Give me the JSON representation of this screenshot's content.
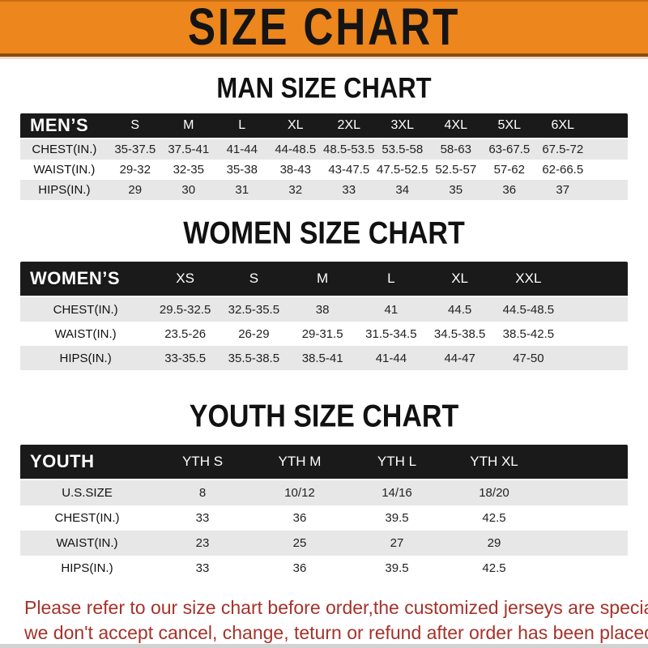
{
  "banner": {
    "title": "SIZE CHART"
  },
  "colors": {
    "banner_orange": "#ED861C",
    "band_black": "#1A1A1A",
    "row_gray": "#E7E7E7",
    "footer_red": "#A5322A"
  },
  "men": {
    "title": "MAN SIZE CHART",
    "corner": "MEN’S",
    "sizes": [
      "S",
      "M",
      "L",
      "XL",
      "2XL",
      "3XL",
      "4XL",
      "5XL",
      "6XL"
    ],
    "rows": [
      {
        "label": "CHEST(IN.)",
        "cells": [
          "35-37.5",
          "37.5-41",
          "41-44",
          "44-48.5",
          "48.5-53.5",
          "53.5-58",
          "58-63",
          "63-67.5",
          "67.5-72"
        ]
      },
      {
        "label": "WAIST(IN.)",
        "cells": [
          "29-32",
          "32-35",
          "35-38",
          "38-43",
          "43-47.5",
          "47.5-52.5",
          "52.5-57",
          "57-62",
          "62-66.5"
        ]
      },
      {
        "label": "HIPS(IN.)",
        "cells": [
          "29",
          "30",
          "31",
          "32",
          "33",
          "34",
          "35",
          "36",
          "37"
        ]
      }
    ]
  },
  "women": {
    "title": "WOMEN SIZE CHART",
    "corner": "WOMEN’S",
    "sizes": [
      "XS",
      "S",
      "M",
      "L",
      "XL",
      "XXL"
    ],
    "rows": [
      {
        "label": "CHEST(IN.)",
        "cells": [
          "29.5-32.5",
          "32.5-35.5",
          "38",
          "41",
          "44.5",
          "44.5-48.5"
        ]
      },
      {
        "label": "WAIST(IN.)",
        "cells": [
          "23.5-26",
          "26-29",
          "29-31.5",
          "31.5-34.5",
          "34.5-38.5",
          "38.5-42.5"
        ]
      },
      {
        "label": "HIPS(IN.)",
        "cells": [
          "33-35.5",
          "35.5-38.5",
          "38.5-41",
          "41-44",
          "44-47",
          "47-50"
        ]
      }
    ]
  },
  "youth": {
    "title": "YOUTH SIZE CHART",
    "corner": "YOUTH",
    "sizes": [
      "YTH S",
      "YTH M",
      "YTH L",
      "YTH XL"
    ],
    "rows": [
      {
        "label": "U.S.SIZE",
        "cells": [
          "8",
          "10/12",
          "14/16",
          "18/20"
        ]
      },
      {
        "label": "CHEST(IN.)",
        "cells": [
          "33",
          "36",
          "39.5",
          "42.5"
        ]
      },
      {
        "label": "WAIST(IN.)",
        "cells": [
          "23",
          "25",
          "27",
          "29"
        ]
      },
      {
        "label": "HIPS(IN.)",
        "cells": [
          "33",
          "36",
          "39.5",
          "42.5"
        ]
      }
    ]
  },
  "footer": {
    "line1": "Please refer to our size chart before order,the customized jerseys are special products,",
    "line2": "we don't accept cancel, change, teturn or refund after order has been placed!"
  }
}
